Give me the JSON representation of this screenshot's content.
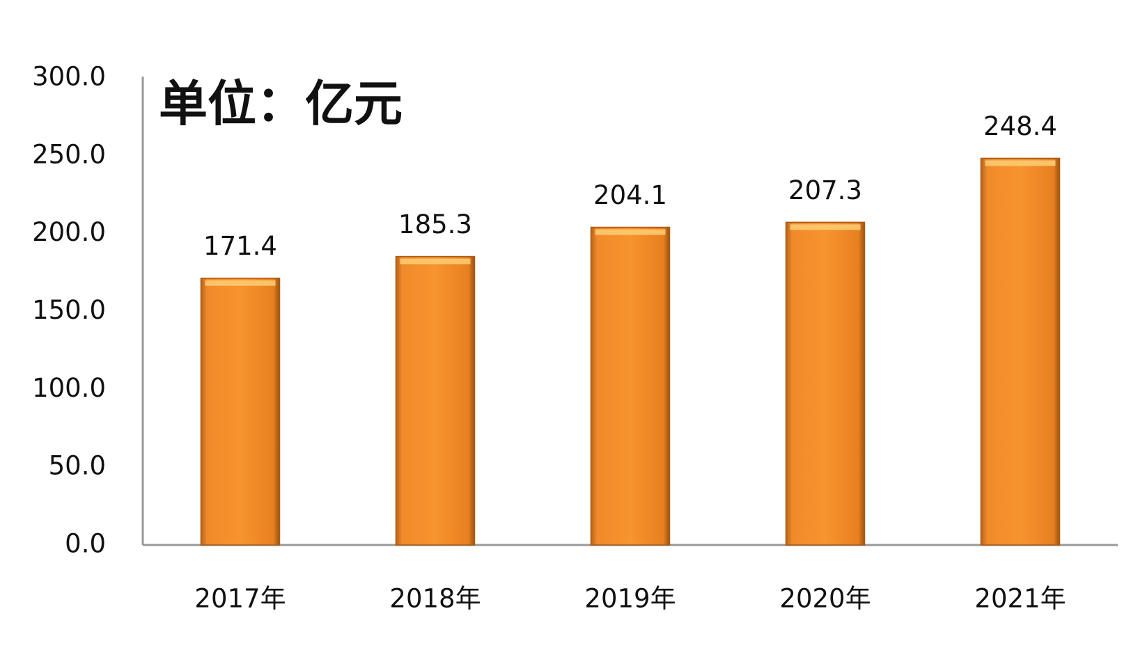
{
  "chart_data": {
    "type": "bar",
    "annotation": "单位：亿元",
    "categories": [
      "2017年",
      "2018年",
      "2019年",
      "2020年",
      "2021年"
    ],
    "values": [
      171.4,
      185.3,
      204.1,
      207.3,
      248.4
    ],
    "color": "#f7941d",
    "ylim": [
      0,
      300
    ],
    "yticks": [
      {
        "value": 0,
        "label": "0.0"
      },
      {
        "value": 50,
        "label": "50.0"
      },
      {
        "value": 100,
        "label": "100.0"
      },
      {
        "value": 150,
        "label": "150.0"
      },
      {
        "value": 200,
        "label": "200.0"
      },
      {
        "value": 250,
        "label": "250.0"
      },
      {
        "value": 300,
        "label": "300.0"
      }
    ],
    "grid": false
  }
}
